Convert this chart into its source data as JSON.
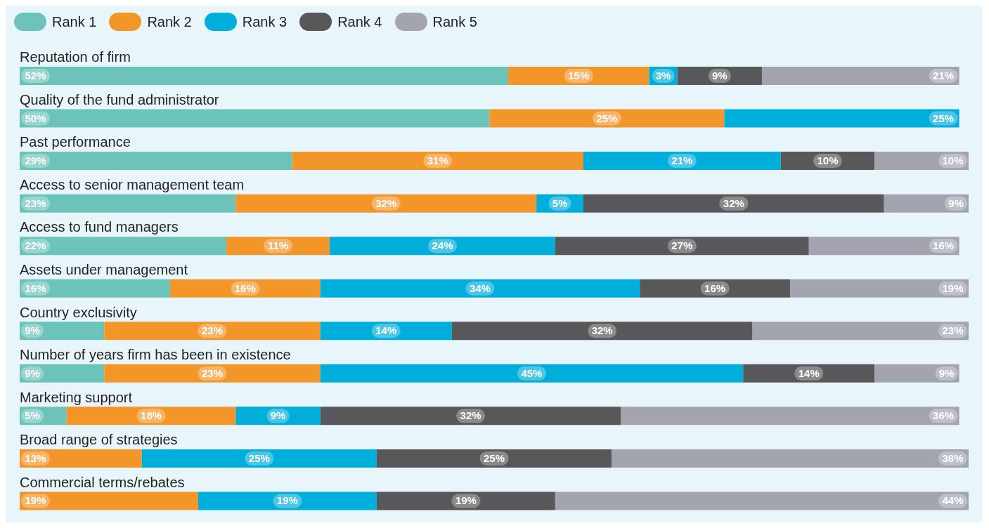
{
  "chart_data": {
    "type": "bar",
    "orientation": "horizontal",
    "stacked": true,
    "legend": "top left",
    "categories": [
      "Reputation of firm",
      "Quality of the fund administrator",
      "Past performance",
      "Access to senior management team",
      "Access to fund managers",
      "Assets under management",
      "Country exclusivity",
      "Number of years firm has been in existence",
      "Marketing support",
      "Broad range of strategies",
      "Commercial terms/rebates"
    ],
    "series": [
      {
        "name": "Rank 1",
        "color": "#6cc3b9",
        "values": [
          52,
          50,
          29,
          23,
          22,
          16,
          9,
          9,
          5,
          null,
          null
        ],
        "value_labels": [
          "52%",
          "50%",
          "29%",
          "23%",
          "22%",
          "16%",
          "9%",
          "9%",
          "5%",
          null,
          null
        ]
      },
      {
        "name": "Rank 2",
        "color": "#f39629",
        "values": [
          15,
          25,
          31,
          32,
          11,
          16,
          23,
          23,
          18,
          13,
          19
        ],
        "value_labels": [
          "15%",
          "25%",
          "31%",
          "32%",
          "11%",
          "16%",
          "23%",
          "23%",
          "18%",
          "13%",
          "19%"
        ]
      },
      {
        "name": "Rank 3",
        "color": "#00aedb",
        "values": [
          3,
          25,
          21,
          5,
          24,
          34,
          14,
          45,
          9,
          25,
          19
        ],
        "value_labels": [
          "3%",
          "25%",
          "21%",
          "5%",
          "24%",
          "34%",
          "14%",
          "45%",
          "9%",
          "25%",
          "19%"
        ]
      },
      {
        "name": "Rank 4",
        "color": "#58585a",
        "values": [
          9,
          null,
          10,
          32,
          27,
          16,
          32,
          14,
          32,
          25,
          19
        ],
        "value_labels": [
          "9%",
          null,
          "10%",
          "32%",
          "27%",
          "16%",
          "32%",
          "14%",
          "32%",
          "25%",
          "19%"
        ]
      },
      {
        "name": "Rank 5",
        "color": "#a3a4b0",
        "values": [
          21,
          null,
          10,
          9,
          16,
          19,
          23,
          9,
          36,
          38,
          44
        ],
        "value_labels": [
          "21%",
          null,
          "10%",
          "9%",
          "16%",
          "19%",
          "23%",
          "9%",
          "36%",
          "38%",
          "44%"
        ]
      }
    ]
  }
}
